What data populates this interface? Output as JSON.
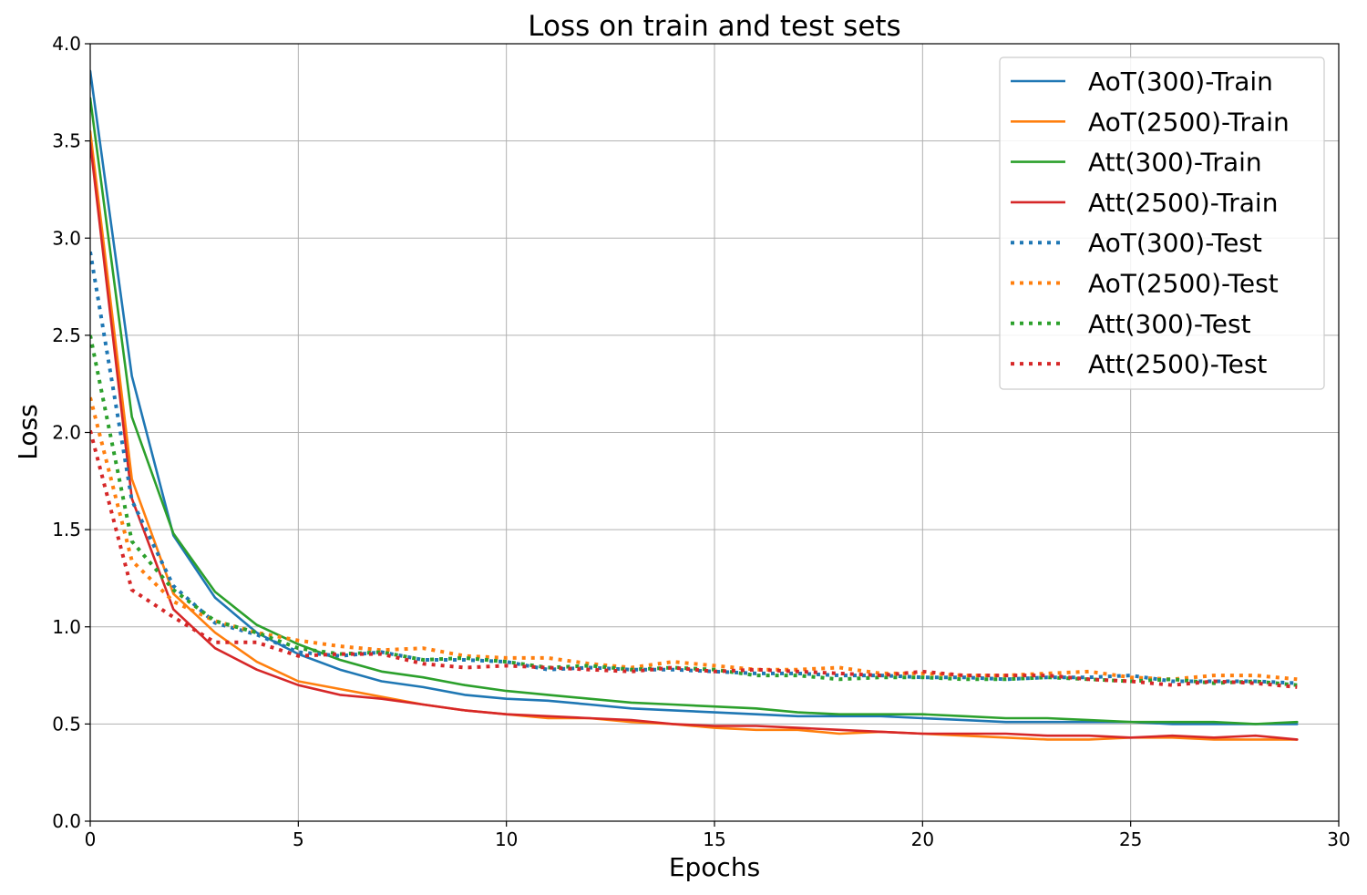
{
  "chart_data": {
    "type": "line",
    "title": "Loss on train and test sets",
    "xlabel": "Epochs",
    "ylabel": "Loss",
    "xlim": [
      0,
      30
    ],
    "ylim": [
      0.0,
      4.0
    ],
    "xticks": [
      "0",
      "5",
      "10",
      "15",
      "20",
      "25",
      "30"
    ],
    "yticks": [
      "0.0",
      "0.5",
      "1.0",
      "1.5",
      "2.0",
      "2.5",
      "3.0",
      "3.5",
      "4.0"
    ],
    "grid": true,
    "legend_position": "top-right",
    "x": [
      0,
      1,
      2,
      3,
      4,
      5,
      6,
      7,
      8,
      9,
      10,
      11,
      12,
      13,
      14,
      15,
      16,
      17,
      18,
      19,
      20,
      21,
      22,
      23,
      24,
      25,
      26,
      27,
      28,
      29
    ],
    "series": [
      {
        "name": "AoT(300)-Train",
        "color": "#1f77b4",
        "style": "solid",
        "values": [
          3.86,
          2.29,
          1.47,
          1.15,
          0.97,
          0.86,
          0.78,
          0.72,
          0.69,
          0.65,
          0.63,
          0.62,
          0.6,
          0.58,
          0.57,
          0.56,
          0.55,
          0.54,
          0.54,
          0.54,
          0.53,
          0.52,
          0.51,
          0.51,
          0.51,
          0.51,
          0.5,
          0.5,
          0.5,
          0.5
        ]
      },
      {
        "name": "AoT(2500)-Train",
        "color": "#ff7f0e",
        "style": "solid",
        "values": [
          3.55,
          1.76,
          1.17,
          0.97,
          0.82,
          0.72,
          0.68,
          0.64,
          0.6,
          0.57,
          0.55,
          0.53,
          0.53,
          0.51,
          0.5,
          0.48,
          0.47,
          0.47,
          0.45,
          0.46,
          0.45,
          0.44,
          0.43,
          0.42,
          0.42,
          0.43,
          0.43,
          0.42,
          0.42,
          0.42
        ]
      },
      {
        "name": "Att(300)-Train",
        "color": "#2ca02c",
        "style": "solid",
        "values": [
          3.72,
          2.08,
          1.48,
          1.18,
          1.01,
          0.91,
          0.83,
          0.77,
          0.74,
          0.7,
          0.67,
          0.65,
          0.63,
          0.61,
          0.6,
          0.59,
          0.58,
          0.56,
          0.55,
          0.55,
          0.55,
          0.54,
          0.53,
          0.53,
          0.52,
          0.51,
          0.51,
          0.51,
          0.5,
          0.51
        ]
      },
      {
        "name": "Att(2500)-Train",
        "color": "#d62728",
        "style": "solid",
        "values": [
          3.49,
          1.66,
          1.09,
          0.89,
          0.78,
          0.7,
          0.65,
          0.63,
          0.6,
          0.57,
          0.55,
          0.54,
          0.53,
          0.52,
          0.5,
          0.49,
          0.49,
          0.48,
          0.47,
          0.46,
          0.45,
          0.45,
          0.45,
          0.44,
          0.44,
          0.43,
          0.44,
          0.43,
          0.44,
          0.42
        ]
      },
      {
        "name": "AoT(300)-Test",
        "color": "#1f77b4",
        "style": "dotted",
        "values": [
          2.93,
          1.65,
          1.21,
          1.02,
          0.96,
          0.87,
          0.85,
          0.87,
          0.83,
          0.83,
          0.82,
          0.78,
          0.79,
          0.78,
          0.78,
          0.77,
          0.76,
          0.76,
          0.75,
          0.75,
          0.74,
          0.74,
          0.73,
          0.74,
          0.74,
          0.75,
          0.72,
          0.72,
          0.72,
          0.71
        ]
      },
      {
        "name": "AoT(2500)-Test",
        "color": "#ff7f0e",
        "style": "dotted",
        "values": [
          2.18,
          1.34,
          1.13,
          1.03,
          0.97,
          0.93,
          0.9,
          0.88,
          0.89,
          0.85,
          0.84,
          0.84,
          0.81,
          0.79,
          0.82,
          0.8,
          0.78,
          0.78,
          0.79,
          0.76,
          0.76,
          0.75,
          0.75,
          0.76,
          0.77,
          0.74,
          0.73,
          0.75,
          0.75,
          0.73
        ]
      },
      {
        "name": "Att(300)-Test",
        "color": "#2ca02c",
        "style": "dotted",
        "values": [
          2.5,
          1.44,
          1.19,
          1.03,
          0.97,
          0.89,
          0.86,
          0.87,
          0.83,
          0.84,
          0.82,
          0.79,
          0.8,
          0.78,
          0.79,
          0.78,
          0.75,
          0.75,
          0.73,
          0.74,
          0.74,
          0.73,
          0.73,
          0.74,
          0.73,
          0.72,
          0.73,
          0.71,
          0.72,
          0.7
        ]
      },
      {
        "name": "Att(2500)-Test",
        "color": "#d62728",
        "style": "dotted",
        "values": [
          2.01,
          1.19,
          1.05,
          0.92,
          0.92,
          0.85,
          0.86,
          0.86,
          0.81,
          0.79,
          0.8,
          0.79,
          0.78,
          0.77,
          0.79,
          0.77,
          0.78,
          0.77,
          0.76,
          0.75,
          0.77,
          0.75,
          0.75,
          0.75,
          0.73,
          0.72,
          0.7,
          0.72,
          0.71,
          0.69
        ]
      }
    ]
  }
}
